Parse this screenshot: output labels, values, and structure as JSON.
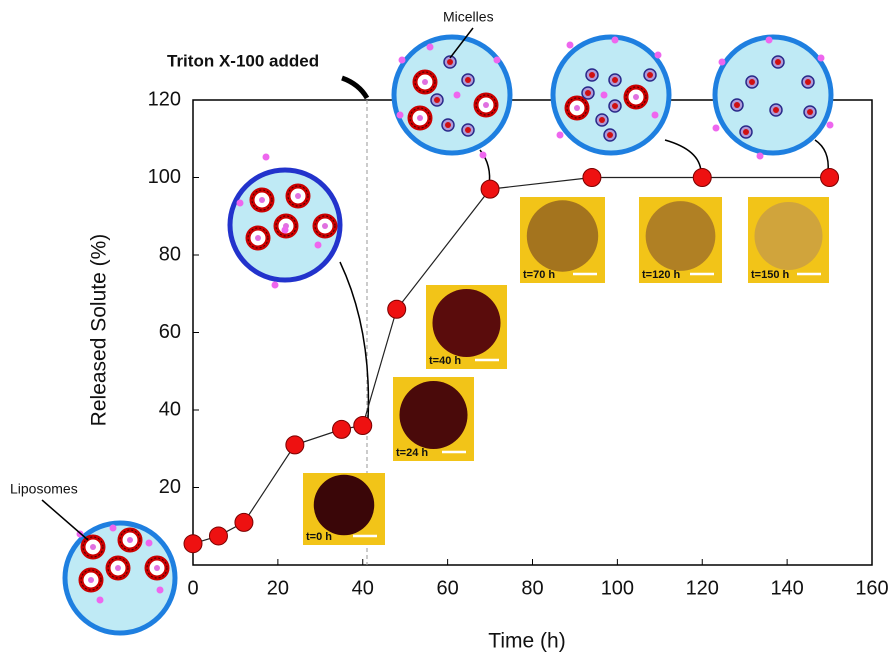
{
  "chart_data": {
    "type": "line",
    "x": [
      0,
      6,
      12,
      24,
      35,
      40,
      48,
      70,
      94,
      120,
      150
    ],
    "values": [
      5.5,
      7.5,
      11,
      31,
      35,
      36,
      66,
      97,
      100,
      100,
      100
    ],
    "color": "#ee1111",
    "xlabel": "Time (h)",
    "ylabel": "Released Solute (%)",
    "xlim": [
      0,
      160
    ],
    "ylim": [
      0,
      120
    ],
    "xticks": [
      0,
      20,
      40,
      60,
      80,
      100,
      120,
      140,
      160
    ],
    "yticks": [
      20,
      40,
      60,
      80,
      100,
      120
    ],
    "grid": false,
    "annotation": {
      "text": "Triton X-100 added",
      "x": 41
    },
    "labels": {
      "liposomes": "Liposomes",
      "micelles": "Micelles"
    },
    "insets": [
      "t=0 h",
      "t=24 h",
      "t=40 h",
      "t=70 h",
      "t=120 h",
      "t=150 h"
    ]
  }
}
